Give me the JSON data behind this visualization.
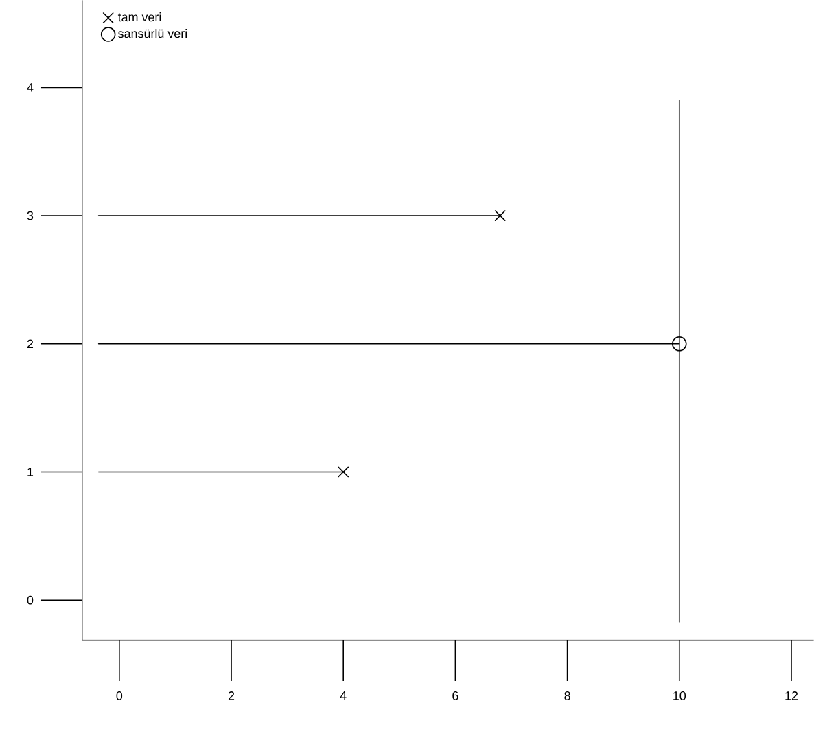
{
  "chart_data": {
    "type": "scatter",
    "xlim": [
      -0.66,
      12.4
    ],
    "ylim": [
      -0.31,
      4.68
    ],
    "xticks": [
      0,
      2,
      4,
      6,
      8,
      10,
      12
    ],
    "yticks": [
      0,
      1,
      2,
      3,
      4
    ],
    "legend": "top left",
    "series": [
      {
        "type": "line",
        "color": "#000000",
        "x": [
          -0.37,
          4
        ],
        "values": [
          1,
          1
        ]
      },
      {
        "type": "line",
        "color": "#000000",
        "x": [
          -0.37,
          6.8
        ],
        "values": [
          3,
          3
        ]
      },
      {
        "type": "line",
        "color": "#000000",
        "x": [
          -0.37,
          10
        ],
        "values": [
          2,
          2
        ]
      },
      {
        "type": "line",
        "color": "#000000",
        "x": [
          10,
          10
        ],
        "values": [
          -0.17,
          3.9
        ]
      },
      {
        "name": "tam veri",
        "color": "#000000",
        "marker": "cross",
        "x": [
          4,
          6.8
        ],
        "values": [
          1,
          3
        ]
      },
      {
        "name": "sansürlü veri",
        "color": "#000000",
        "marker": "circle",
        "x": [
          10
        ],
        "values": [
          2
        ]
      }
    ]
  }
}
